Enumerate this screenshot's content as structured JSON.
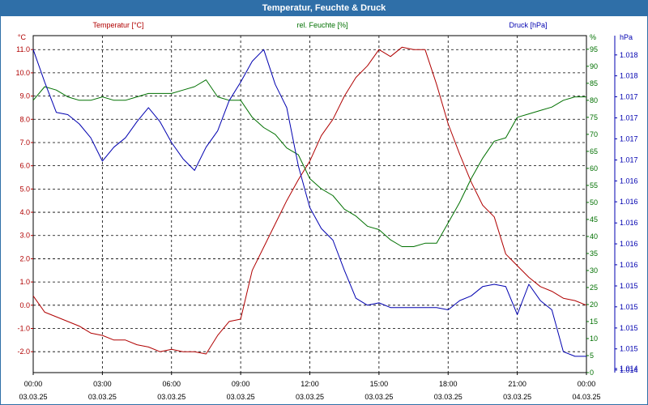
{
  "chart_data": {
    "type": "line",
    "title": "Temperatur, Feuchte & Druck",
    "x_ticks": [
      {
        "time": "00:00",
        "date": "03.03.25"
      },
      {
        "time": "03:00",
        "date": "03.03.25"
      },
      {
        "time": "06:00",
        "date": "03.03.25"
      },
      {
        "time": "09:00",
        "date": "03.03.25"
      },
      {
        "time": "12:00",
        "date": "03.03.25"
      },
      {
        "time": "15:00",
        "date": "03.03.25"
      },
      {
        "time": "18:00",
        "date": "03.03.25"
      },
      {
        "time": "21:00",
        "date": "03.03.25"
      },
      {
        "time": "00:00",
        "date": "04.03.25"
      }
    ],
    "x_hours": [
      0,
      0.5,
      1,
      1.5,
      2,
      2.5,
      3,
      3.5,
      4,
      4.5,
      5,
      5.5,
      6,
      6.5,
      7,
      7.5,
      8,
      8.5,
      9,
      9.5,
      10,
      10.5,
      11,
      11.5,
      12,
      12.5,
      13,
      13.5,
      14,
      14.5,
      15,
      15.5,
      16,
      16.5,
      17,
      17.5,
      18,
      18.5,
      19,
      19.5,
      20,
      20.5,
      21,
      21.5,
      22,
      22.5,
      23,
      23.5,
      24
    ],
    "axes": {
      "temperature": {
        "label": "Temperatur [°C]",
        "unit": "°C",
        "color": "#b00000",
        "range": [
          -2.9,
          11.6
        ],
        "ticks": [
          "11.0",
          "10.0",
          "9.0",
          "8.0",
          "7.0",
          "6.0",
          "5.0",
          "4.0",
          "3.0",
          "2.0",
          "1.0",
          "0.0",
          "-1.0",
          "-2.0"
        ],
        "tick_values": [
          11,
          10,
          9,
          8,
          7,
          6,
          5,
          4,
          3,
          2,
          1,
          0,
          -1,
          -2
        ]
      },
      "humidity": {
        "label": "rel. Feuchte [%]",
        "unit": "%",
        "color": "#007000",
        "range": [
          0,
          99
        ],
        "ticks": [
          "95",
          "90",
          "85",
          "80",
          "75",
          "70",
          "65",
          "60",
          "55",
          "50",
          "45",
          "40",
          "35",
          "30",
          "25",
          "20",
          "15",
          "10",
          "5",
          "0"
        ],
        "tick_values": [
          95,
          90,
          85,
          80,
          75,
          70,
          65,
          60,
          55,
          50,
          45,
          40,
          35,
          30,
          25,
          20,
          15,
          10,
          5,
          0
        ]
      },
      "pressure": {
        "label": "Druck [hPa]",
        "unit": "hPa",
        "color": "#0000b0",
        "range": [
          -2.9,
          11.6
        ],
        "ticks": [
          "1.018",
          "1.018",
          "1.017",
          "1.017",
          "1.017",
          "1.017",
          "1.016",
          "1.016",
          "1.016",
          "1.016",
          "1.016",
          "1.015",
          "1.015",
          "1.015",
          "1.015",
          "1.014",
          "1.014"
        ],
        "tick_values": [
          10.77,
          9.87,
          8.97,
          8.06,
          7.16,
          6.25,
          5.35,
          4.45,
          3.54,
          2.64,
          1.74,
          0.83,
          -0.07,
          -0.98,
          -1.88,
          -2.79,
          -2.79
        ]
      }
    },
    "series": [
      {
        "name": "Temperatur",
        "axis": "temperature",
        "color": "#b00000",
        "values": [
          0.4,
          -0.3,
          -0.5,
          -0.7,
          -0.9,
          -1.2,
          -1.3,
          -1.5,
          -1.5,
          -1.7,
          -1.8,
          -2.0,
          -1.9,
          -2.0,
          -2.0,
          -2.1,
          -1.3,
          -0.7,
          -0.6,
          1.5,
          2.5,
          3.5,
          4.5,
          5.4,
          6.2,
          7.3,
          8.0,
          9.0,
          9.8,
          10.3,
          11.0,
          10.7,
          11.1,
          11.0,
          11.0,
          9.5,
          7.8,
          6.5,
          5.3,
          4.3,
          3.8,
          2.2,
          1.7,
          1.2,
          0.8,
          0.6,
          0.3,
          0.2,
          0.0
        ]
      },
      {
        "name": "rel. Feuchte",
        "axis": "humidity",
        "color": "#007000",
        "values": [
          80,
          84,
          83,
          81,
          80,
          80,
          81,
          80,
          80,
          81,
          82,
          82,
          82,
          83,
          84,
          86,
          81,
          80,
          80,
          75,
          72,
          70,
          66,
          64,
          57,
          54,
          52,
          48,
          46,
          43,
          42,
          39,
          37,
          37,
          38,
          38,
          44,
          50,
          57,
          63,
          68,
          69,
          75,
          76,
          77,
          78,
          80,
          81,
          81
        ]
      },
      {
        "name": "Druck",
        "axis": "pressure",
        "color": "#0000b0",
        "values": [
          11.0,
          9.6,
          8.3,
          8.2,
          7.8,
          7.2,
          6.2,
          6.8,
          7.2,
          7.9,
          8.5,
          7.9,
          7.0,
          6.3,
          5.8,
          6.8,
          7.5,
          8.8,
          9.6,
          10.5,
          11.0,
          9.5,
          8.5,
          6.0,
          4.2,
          3.3,
          2.8,
          1.5,
          0.3,
          0.0,
          0.1,
          -0.1,
          -0.1,
          -0.1,
          -0.1,
          -0.1,
          -0.2,
          0.2,
          0.4,
          0.8,
          0.9,
          0.8,
          -0.4,
          0.9,
          0.2,
          -0.2,
          -2.0,
          -2.2,
          -2.2
        ]
      }
    ],
    "grid": true
  }
}
